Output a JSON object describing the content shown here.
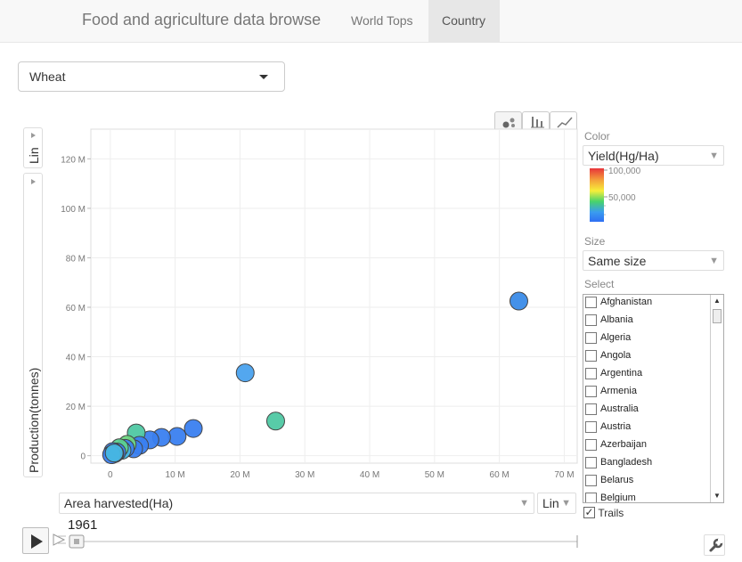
{
  "navbar": {
    "brand": "Food and agriculture data browse",
    "tabs": [
      {
        "label": "World Tops",
        "active": false
      },
      {
        "label": "Country",
        "active": true
      }
    ]
  },
  "crop_select": {
    "value": "Wheat"
  },
  "chart_view_tabs": [
    {
      "icon": "bubble-chart-icon",
      "active": true
    },
    {
      "icon": "bar-chart-icon",
      "active": false
    },
    {
      "icon": "line-chart-icon",
      "active": false
    }
  ],
  "y_axis": {
    "scale_label": "Lin",
    "label": "Production(tonnes)"
  },
  "x_axis": {
    "label": "Area harvested(Ha)",
    "scale_label": "Lin"
  },
  "color_panel": {
    "title": "Color",
    "selected": "Yield(Hg/Ha)",
    "legend_ticks": [
      "100,000",
      "50,000"
    ],
    "legend_colors": [
      "#e8353a",
      "#f4a13a",
      "#f7ee3a",
      "#48d36b",
      "#3a9cf0",
      "#2f6ff2"
    ]
  },
  "size_panel": {
    "title": "Size",
    "selected": "Same size"
  },
  "select_panel": {
    "title": "Select",
    "countries": [
      "Afghanistan",
      "Albania",
      "Algeria",
      "Angola",
      "Argentina",
      "Armenia",
      "Australia",
      "Austria",
      "Azerbaijan",
      "Bangladesh",
      "Belarus",
      "Belgium"
    ]
  },
  "trails": {
    "label": "Trails",
    "checked": true
  },
  "timeline": {
    "year": "1961",
    "progress": 0
  },
  "chart_data": {
    "type": "scatter",
    "xlabel": "Area harvested(Ha)",
    "ylabel": "Production(tonnes)",
    "xlim": [
      -3,
      72
    ],
    "ylim": [
      -3,
      132
    ],
    "x_unit": "M",
    "y_unit": "M",
    "x_ticks": [
      0,
      10,
      20,
      30,
      40,
      50,
      60,
      70
    ],
    "y_ticks": [
      0,
      20,
      40,
      60,
      80,
      100,
      120
    ],
    "x_tick_labels": [
      "0",
      "10 M",
      "20 M",
      "30 M",
      "40 M",
      "50 M",
      "60 M",
      "70 M"
    ],
    "y_tick_labels": [
      "0",
      "20 M",
      "40 M",
      "60 M",
      "80 M",
      "100 M",
      "120 M"
    ],
    "grid": true,
    "points": [
      {
        "x": 63.0,
        "y": 62.5,
        "color": "#3a8be8"
      },
      {
        "x": 20.8,
        "y": 33.5,
        "color": "#4aa2ee"
      },
      {
        "x": 25.5,
        "y": 14.0,
        "color": "#4fc8a3"
      },
      {
        "x": 12.8,
        "y": 11.0,
        "color": "#3a7ff0"
      },
      {
        "x": 10.3,
        "y": 7.8,
        "color": "#3a7ff0"
      },
      {
        "x": 7.9,
        "y": 7.4,
        "color": "#3a7ff0"
      },
      {
        "x": 6.1,
        "y": 6.4,
        "color": "#3a7ff0"
      },
      {
        "x": 4.0,
        "y": 9.2,
        "color": "#4fc8a3"
      },
      {
        "x": 4.5,
        "y": 4.2,
        "color": "#3a7ff0"
      },
      {
        "x": 3.6,
        "y": 2.8,
        "color": "#3a7ff0"
      },
      {
        "x": 2.6,
        "y": 4.6,
        "color": "#6dd57f"
      },
      {
        "x": 2.3,
        "y": 3.0,
        "color": "#3a7ff0"
      },
      {
        "x": 1.8,
        "y": 2.2,
        "color": "#47b7e0"
      },
      {
        "x": 1.4,
        "y": 3.2,
        "color": "#5cd08f"
      },
      {
        "x": 1.0,
        "y": 1.5,
        "color": "#3a7ff0"
      },
      {
        "x": 0.7,
        "y": 0.9,
        "color": "#3a7ff0"
      },
      {
        "x": 0.4,
        "y": 1.7,
        "color": "#3a7ff0"
      },
      {
        "x": 0.2,
        "y": 0.4,
        "color": "#3a7ff0"
      },
      {
        "x": 0.6,
        "y": 1.1,
        "color": "#47b7e0"
      }
    ]
  }
}
